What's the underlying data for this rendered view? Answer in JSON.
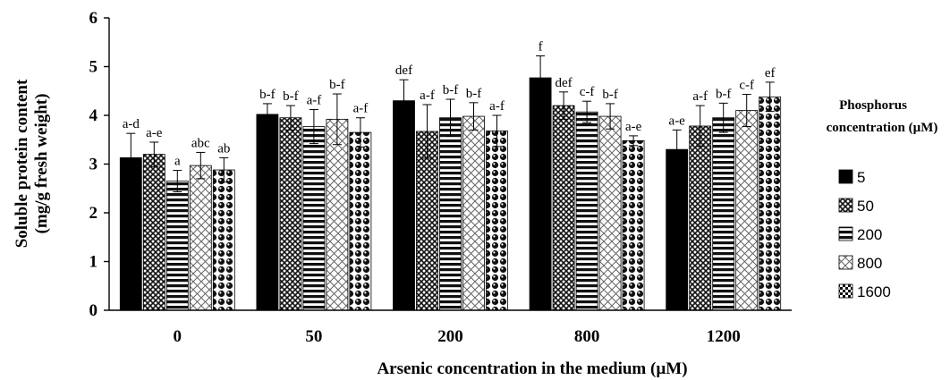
{
  "chart_data": {
    "type": "bar",
    "ylabel_lines": [
      "Soluble protein content",
      "(mg/g fresh weight)"
    ],
    "xlabel": "Arsenic  concentration in the medium (µM)",
    "legend_title_lines": [
      "Phosphorus",
      "concentration (µM)"
    ],
    "legend_position": "right",
    "ylim": [
      0,
      6
    ],
    "yticks": [
      "0",
      "1",
      "2",
      "3",
      "4",
      "5",
      "6"
    ],
    "grid": false,
    "categories": [
      "0",
      "50",
      "200",
      "800",
      "1200"
    ],
    "series": [
      {
        "name": "5",
        "pattern": "solid-black",
        "values": [
          3.13,
          4.02,
          4.3,
          4.77,
          3.3
        ],
        "errors": [
          0.5,
          0.22,
          0.43,
          0.45,
          0.4
        ],
        "labels": [
          "a-d",
          "b-f",
          "def",
          "f",
          "a-e"
        ]
      },
      {
        "name": "50",
        "pattern": "crosshatch",
        "values": [
          3.2,
          3.95,
          3.67,
          4.2,
          3.78
        ],
        "errors": [
          0.25,
          0.25,
          0.55,
          0.28,
          0.42
        ],
        "labels": [
          "a-e",
          "b-f",
          "a-f",
          "def",
          "a-f"
        ]
      },
      {
        "name": "200",
        "pattern": "horizontal",
        "values": [
          2.65,
          3.77,
          3.95,
          4.07,
          3.95
        ],
        "errors": [
          0.22,
          0.35,
          0.38,
          0.22,
          0.3
        ],
        "labels": [
          "a",
          "a-f",
          "b-f",
          "c-f",
          "b-f"
        ]
      },
      {
        "name": "800",
        "pattern": "diagonal-grid",
        "values": [
          2.97,
          3.92,
          3.98,
          3.98,
          4.1
        ],
        "errors": [
          0.27,
          0.52,
          0.28,
          0.26,
          0.33
        ],
        "labels": [
          "abc",
          "b-f",
          "b-f",
          "b-f",
          "c-f"
        ]
      },
      {
        "name": "1600",
        "pattern": "dotted-circles",
        "values": [
          2.88,
          3.65,
          3.68,
          3.48,
          4.38
        ],
        "errors": [
          0.25,
          0.3,
          0.32,
          0.1,
          0.3
        ],
        "labels": [
          "ab",
          "a-f",
          "a-f",
          "a-e",
          "ef"
        ]
      }
    ]
  }
}
